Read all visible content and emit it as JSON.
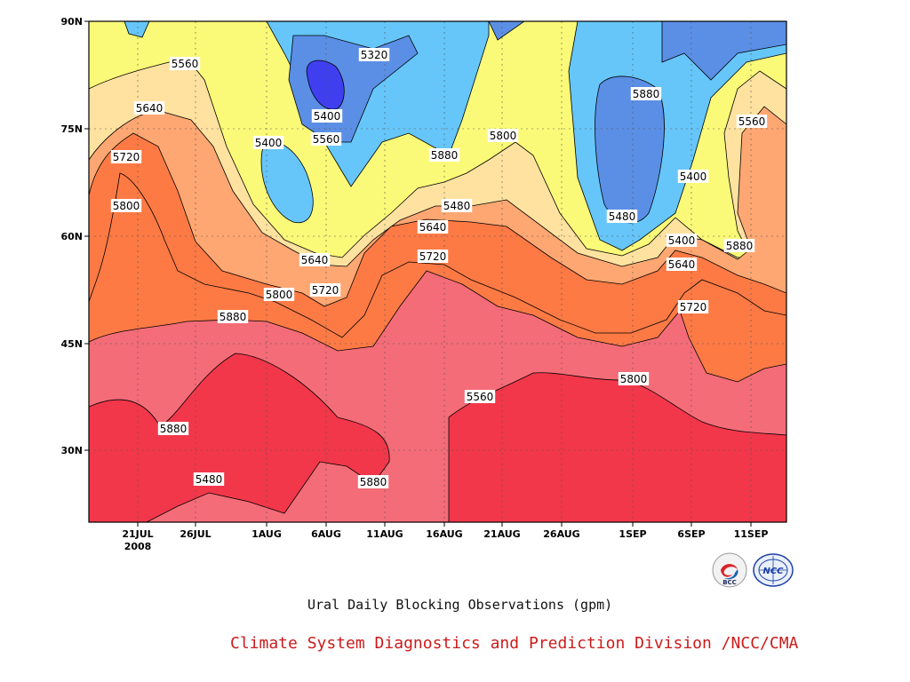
{
  "chart_data": {
    "type": "contour",
    "title": "Ural Daily Blocking Observations (gpm)",
    "xlabel": "",
    "ylabel": "",
    "year_label": "2008",
    "x_tick_labels": [
      "21JUL",
      "26JUL",
      "1AUG",
      "6AUG",
      "11AUG",
      "16AUG",
      "21AUG",
      "26AUG",
      "1SEP",
      "6SEP",
      "11SEP"
    ],
    "y_tick_labels": [
      "30N",
      "45N",
      "60N",
      "75N",
      "90N"
    ],
    "ylim": [
      "20N",
      "90N"
    ],
    "grid": true,
    "contour_levels": [
      5320,
      5400,
      5480,
      5560,
      5640,
      5720,
      5800,
      5880
    ],
    "fill_colors": {
      "below_5320": "#3f3ff0",
      "5320_5400": "#5b8fe6",
      "5400_5480": "#66c6fa",
      "5480_5560": "#fafa78",
      "5560_5640": "#ffe2a0",
      "5640_5720": "#fea772",
      "5720_5800": "#fd7a45",
      "5800_5880": "#f46c78",
      "above_5880": "#f2374a"
    },
    "contour_labels": [
      "5560",
      "5640",
      "5720",
      "5800",
      "5880",
      "5880",
      "5480",
      "5400",
      "5320",
      "5400",
      "5560",
      "5640",
      "5720",
      "5800",
      "5880",
      "5880",
      "5480",
      "5640",
      "5720",
      "5800",
      "5560",
      "5880",
      "5400",
      "5480",
      "5400",
      "5640",
      "5720",
      "5800",
      "5880",
      "5560",
      "5640"
    ]
  },
  "footer": {
    "title": "Ural Daily Blocking Observations (gpm)",
    "credit": "Climate System Diagnostics and Prediction Division /NCC/CMA",
    "logo_left": "BCC",
    "logo_right": "NCC"
  }
}
